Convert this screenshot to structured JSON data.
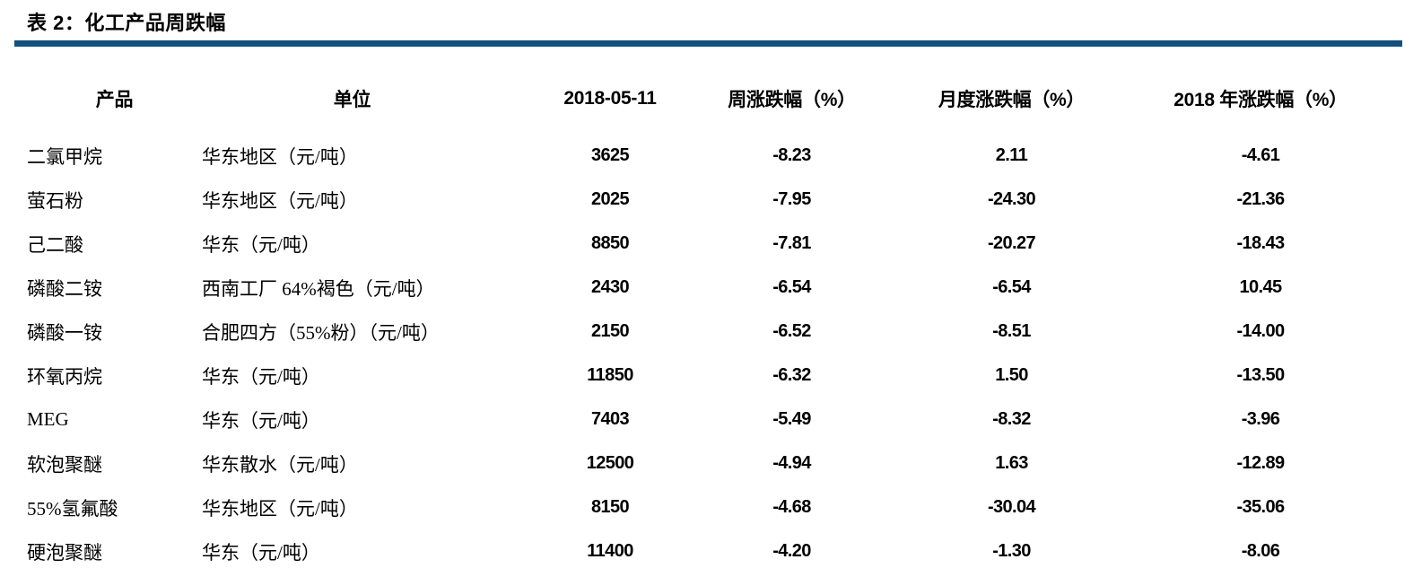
{
  "title": "表 2：化工产品周跌幅",
  "colors": {
    "accent_rule": "#12507E",
    "text": "#000000",
    "background": "#FFFFFF"
  },
  "table": {
    "headers": {
      "product": "产品",
      "unit": "单位",
      "date": "2018-05-11",
      "weekly": "周涨跌幅（%）",
      "monthly": "月度涨跌幅（%）",
      "ytd": "2018 年涨跌幅（%）"
    },
    "rows": [
      {
        "product": "二氯甲烷",
        "unit": "华东地区（元/吨）",
        "price": "3625",
        "weekly": "-8.23",
        "monthly": "2.11",
        "ytd": "-4.61"
      },
      {
        "product": "萤石粉",
        "unit": "华东地区（元/吨）",
        "price": "2025",
        "weekly": "-7.95",
        "monthly": "-24.30",
        "ytd": "-21.36"
      },
      {
        "product": "己二酸",
        "unit": "华东（元/吨）",
        "price": "8850",
        "weekly": "-7.81",
        "monthly": "-20.27",
        "ytd": "-18.43"
      },
      {
        "product": "磷酸二铵",
        "unit": "西南工厂 64%褐色（元/吨）",
        "price": "2430",
        "weekly": "-6.54",
        "monthly": "-6.54",
        "ytd": "10.45"
      },
      {
        "product": "磷酸一铵",
        "unit": "合肥四方（55%粉）（元/吨）",
        "price": "2150",
        "weekly": "-6.52",
        "monthly": "-8.51",
        "ytd": "-14.00"
      },
      {
        "product": "环氧丙烷",
        "unit": "华东（元/吨）",
        "price": "11850",
        "weekly": "-6.32",
        "monthly": "1.50",
        "ytd": "-13.50"
      },
      {
        "product": "MEG",
        "unit": "华东（元/吨）",
        "price": "7403",
        "weekly": "-5.49",
        "monthly": "-8.32",
        "ytd": "-3.96"
      },
      {
        "product": "软泡聚醚",
        "unit": "华东散水（元/吨）",
        "price": "12500",
        "weekly": "-4.94",
        "monthly": "1.63",
        "ytd": "-12.89"
      },
      {
        "product": "55%氢氟酸",
        "unit": "华东地区（元/吨）",
        "price": "8150",
        "weekly": "-4.68",
        "monthly": "-30.04",
        "ytd": "-35.06"
      },
      {
        "product": "硬泡聚醚",
        "unit": "华东（元/吨）",
        "price": "11400",
        "weekly": "-4.20",
        "monthly": "-1.30",
        "ytd": "-8.06"
      }
    ]
  }
}
